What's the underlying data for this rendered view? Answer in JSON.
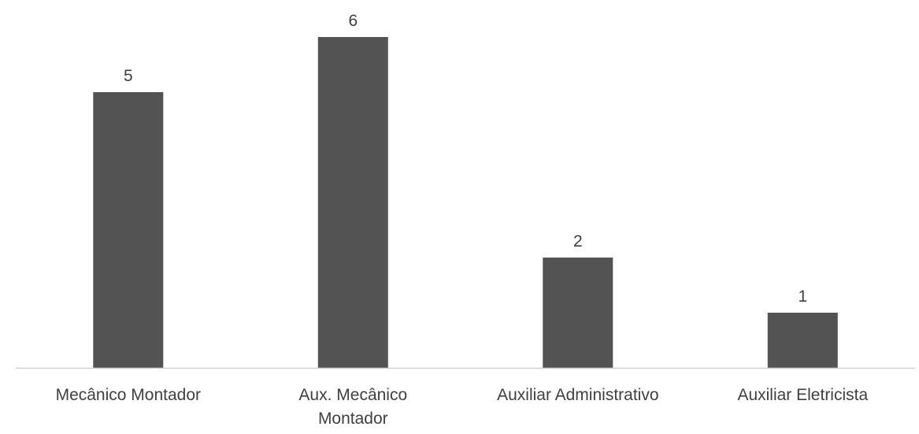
{
  "chart_data": {
    "type": "bar",
    "title": "",
    "xlabel": "",
    "ylabel": "",
    "categories": [
      [
        "Mecânico Montador"
      ],
      [
        "Aux. Mecânico",
        "Montador"
      ],
      [
        "Auxiliar Administrativo"
      ],
      [
        "Auxiliar Eletricista"
      ]
    ],
    "values": [
      5,
      6,
      2,
      1
    ],
    "ylim": [
      0,
      6
    ],
    "grid": false,
    "legend": "none",
    "data_labels": true,
    "bar_color": "#535353",
    "axis_color": "#d0d0d0",
    "text_color": "#404040"
  }
}
